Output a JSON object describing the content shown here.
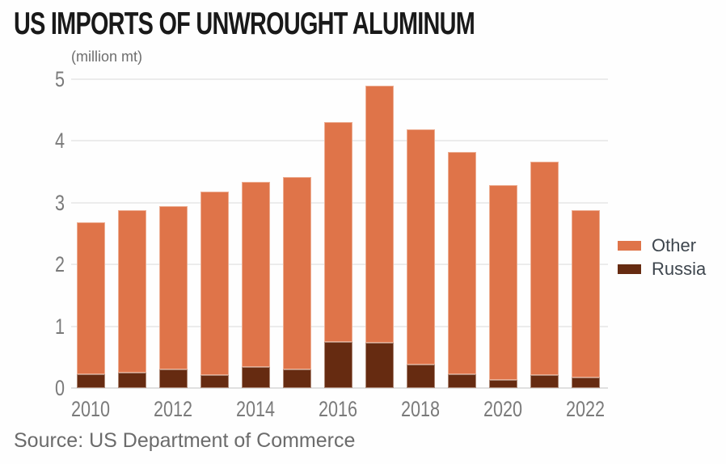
{
  "title": "US IMPORTS OF UNWROUGHT ALUMINUM",
  "subtitle": "(million mt)",
  "source": "Source: US Department of Commerce",
  "colors": {
    "other": "#DF7449",
    "russia": "#662B11",
    "grid": "#ECECEC",
    "baseline": "#E0E0E0",
    "axis_text": "#7A7A7A",
    "legend_text": "#3E464E",
    "title_text": "#191919",
    "muted_text": "#6E6E6E",
    "background": "#FEFEFE"
  },
  "legend": {
    "items": [
      {
        "label": "Other",
        "color": "#DF7449"
      },
      {
        "label": "Russia",
        "color": "#662B11"
      }
    ]
  },
  "chart_data": {
    "type": "bar",
    "stacked": true,
    "stack_order": "bottom_to_top",
    "title": "US IMPORTS OF UNWROUGHT ALUMINUM",
    "unit_label": "(million mt)",
    "categories": [
      2010,
      2011,
      2012,
      2013,
      2014,
      2015,
      2016,
      2017,
      2018,
      2019,
      2020,
      2021,
      2022
    ],
    "series": [
      {
        "name": "Russia",
        "color": "#662B11",
        "values": [
          0.22,
          0.25,
          0.3,
          0.21,
          0.34,
          0.3,
          0.74,
          0.73,
          0.38,
          0.22,
          0.13,
          0.21,
          0.17
        ]
      },
      {
        "name": "Other",
        "color": "#DF7449",
        "values": [
          2.46,
          2.63,
          2.65,
          2.97,
          3.0,
          3.11,
          3.56,
          4.17,
          3.81,
          3.6,
          3.16,
          3.45,
          2.71
        ]
      }
    ],
    "totals": [
      2.68,
      2.88,
      2.95,
      3.18,
      3.34,
      3.41,
      4.3,
      4.9,
      4.19,
      3.82,
      3.29,
      3.66,
      2.88
    ],
    "xlabel": "",
    "ylabel": "(million mt)",
    "ylim": [
      0,
      5
    ],
    "yticks": [
      0,
      1,
      2,
      3,
      4,
      5
    ],
    "xtick_labels": [
      "2010",
      "2012",
      "2014",
      "2016",
      "2018",
      "2020",
      "2022"
    ],
    "xtick_every": 2,
    "grid": "horizontal",
    "legend_position": "right"
  }
}
